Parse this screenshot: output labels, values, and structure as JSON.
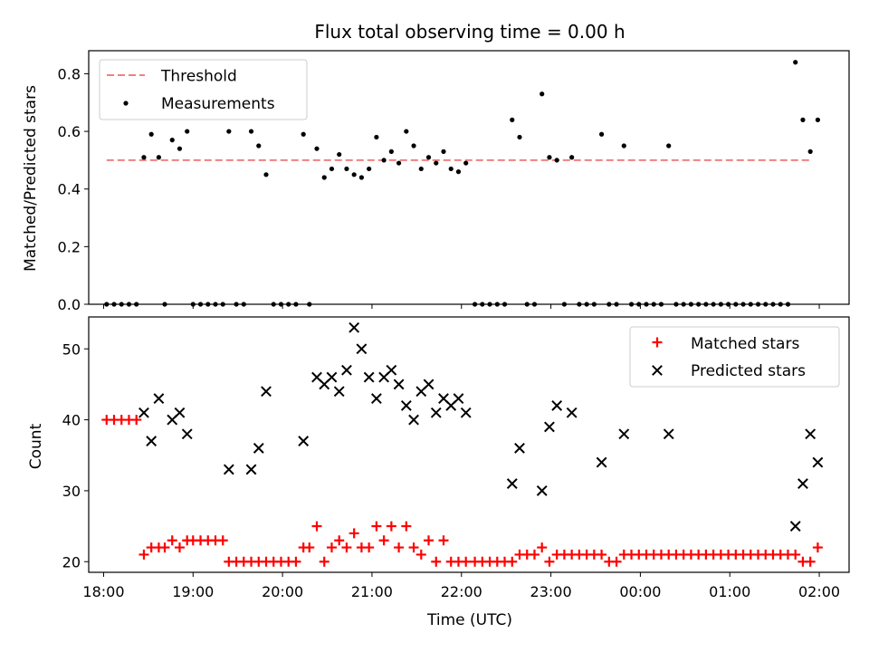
{
  "chart_data": [
    {
      "type": "scatter",
      "title": "Flux total observing time = 0.00 h",
      "xlabel": "",
      "ylabel": "Matched/Predicted stars",
      "xlim": [
        "17:50",
        "02:20"
      ],
      "ylim": [
        0,
        0.88
      ],
      "yticks": [
        "0.0",
        "0.2",
        "0.4",
        "0.6",
        "0.8"
      ],
      "grid": false,
      "legend_position": "top-left",
      "threshold": {
        "name": "Threshold",
        "value": 0.5,
        "x_start": "18:02",
        "x_end": "01:55",
        "color": "#f08080",
        "style": "dashed"
      },
      "series": [
        {
          "name": "Measurements",
          "color": "#000000",
          "marker": "dot",
          "points": [
            [
              "18:02",
              0
            ],
            [
              "18:07",
              0
            ],
            [
              "18:12",
              0
            ],
            [
              "18:17",
              0
            ],
            [
              "18:22",
              0
            ],
            [
              "18:27",
              0.51
            ],
            [
              "18:32",
              0.59
            ],
            [
              "18:37",
              0.51
            ],
            [
              "18:41",
              0
            ],
            [
              "18:46",
              0.57
            ],
            [
              "18:51",
              0.54
            ],
            [
              "18:56",
              0.6
            ],
            [
              "19:00",
              0
            ],
            [
              "19:05",
              0
            ],
            [
              "19:10",
              0
            ],
            [
              "19:15",
              0
            ],
            [
              "19:20",
              0
            ],
            [
              "19:24",
              0.6
            ],
            [
              "19:29",
              0
            ],
            [
              "19:34",
              0
            ],
            [
              "19:39",
              0.6
            ],
            [
              "19:44",
              0.55
            ],
            [
              "19:49",
              0.45
            ],
            [
              "19:54",
              0
            ],
            [
              "19:59",
              0
            ],
            [
              "20:04",
              0
            ],
            [
              "20:09",
              0
            ],
            [
              "20:14",
              0.59
            ],
            [
              "20:18",
              0
            ],
            [
              "20:23",
              0.54
            ],
            [
              "20:28",
              0.44
            ],
            [
              "20:33",
              0.47
            ],
            [
              "20:38",
              0.52
            ],
            [
              "20:43",
              0.47
            ],
            [
              "20:48",
              0.45
            ],
            [
              "20:53",
              0.44
            ],
            [
              "20:58",
              0.47
            ],
            [
              "21:03",
              0.58
            ],
            [
              "21:08",
              0.5
            ],
            [
              "21:13",
              0.53
            ],
            [
              "21:18",
              0.49
            ],
            [
              "21:23",
              0.6
            ],
            [
              "21:28",
              0.55
            ],
            [
              "21:33",
              0.47
            ],
            [
              "21:38",
              0.51
            ],
            [
              "21:43",
              0.49
            ],
            [
              "21:48",
              0.53
            ],
            [
              "21:53",
              0.47
            ],
            [
              "21:58",
              0.46
            ],
            [
              "22:03",
              0.49
            ],
            [
              "22:09",
              0
            ],
            [
              "22:14",
              0
            ],
            [
              "22:19",
              0
            ],
            [
              "22:24",
              0
            ],
            [
              "22:29",
              0
            ],
            [
              "22:34",
              0.64
            ],
            [
              "22:39",
              0.58
            ],
            [
              "22:44",
              0
            ],
            [
              "22:49",
              0
            ],
            [
              "22:54",
              0.73
            ],
            [
              "22:59",
              0.51
            ],
            [
              "23:04",
              0.5
            ],
            [
              "23:09",
              0
            ],
            [
              "23:14",
              0.51
            ],
            [
              "23:19",
              0
            ],
            [
              "23:24",
              0
            ],
            [
              "23:29",
              0
            ],
            [
              "23:34",
              0.59
            ],
            [
              "23:39",
              0
            ],
            [
              "23:44",
              0
            ],
            [
              "23:49",
              0.55
            ],
            [
              "23:54",
              0
            ],
            [
              "23:59",
              0
            ],
            [
              "00:04",
              0
            ],
            [
              "00:09",
              0
            ],
            [
              "00:14",
              0
            ],
            [
              "00:19",
              0.55
            ],
            [
              "00:24",
              0
            ],
            [
              "00:29",
              0
            ],
            [
              "00:34",
              0
            ],
            [
              "00:39",
              0
            ],
            [
              "00:44",
              0
            ],
            [
              "00:49",
              0
            ],
            [
              "00:54",
              0
            ],
            [
              "00:59",
              0
            ],
            [
              "01:04",
              0
            ],
            [
              "01:09",
              0
            ],
            [
              "01:14",
              0
            ],
            [
              "01:19",
              0
            ],
            [
              "01:24",
              0
            ],
            [
              "01:29",
              0
            ],
            [
              "01:34",
              0
            ],
            [
              "01:39",
              0
            ],
            [
              "01:44",
              0.84
            ],
            [
              "01:49",
              0.64
            ],
            [
              "01:54",
              0.53
            ],
            [
              "01:59",
              0.64
            ]
          ]
        }
      ]
    },
    {
      "type": "scatter",
      "title": "",
      "xlabel": "Time (UTC)",
      "ylabel": "Count",
      "xlim": [
        "17:50",
        "02:20"
      ],
      "ylim": [
        18.5,
        54.5
      ],
      "yticks": [
        "20",
        "30",
        "40",
        "50"
      ],
      "xticks": [
        "18:00",
        "19:00",
        "20:00",
        "21:00",
        "22:00",
        "23:00",
        "00:00",
        "01:00",
        "02:00"
      ],
      "grid": false,
      "legend_position": "top-right",
      "series": [
        {
          "name": "Matched stars",
          "color": "#ff0000",
          "marker": "plus",
          "points": [
            [
              "18:02",
              40
            ],
            [
              "18:07",
              40
            ],
            [
              "18:12",
              40
            ],
            [
              "18:17",
              40
            ],
            [
              "18:22",
              40
            ],
            [
              "18:27",
              21
            ],
            [
              "18:32",
              22
            ],
            [
              "18:37",
              22
            ],
            [
              "18:41",
              22
            ],
            [
              "18:46",
              23
            ],
            [
              "18:51",
              22
            ],
            [
              "18:56",
              23
            ],
            [
              "19:00",
              23
            ],
            [
              "19:05",
              23
            ],
            [
              "19:10",
              23
            ],
            [
              "19:15",
              23
            ],
            [
              "19:20",
              23
            ],
            [
              "19:24",
              20
            ],
            [
              "19:29",
              20
            ],
            [
              "19:34",
              20
            ],
            [
              "19:39",
              20
            ],
            [
              "19:44",
              20
            ],
            [
              "19:49",
              20
            ],
            [
              "19:54",
              20
            ],
            [
              "19:59",
              20
            ],
            [
              "20:04",
              20
            ],
            [
              "20:09",
              20
            ],
            [
              "20:14",
              22
            ],
            [
              "20:18",
              22
            ],
            [
              "20:23",
              25
            ],
            [
              "20:28",
              20
            ],
            [
              "20:33",
              22
            ],
            [
              "20:38",
              23
            ],
            [
              "20:43",
              22
            ],
            [
              "20:48",
              24
            ],
            [
              "20:53",
              22
            ],
            [
              "20:58",
              22
            ],
            [
              "21:03",
              25
            ],
            [
              "21:08",
              23
            ],
            [
              "21:13",
              25
            ],
            [
              "21:18",
              22
            ],
            [
              "21:23",
              25
            ],
            [
              "21:28",
              22
            ],
            [
              "21:33",
              21
            ],
            [
              "21:38",
              23
            ],
            [
              "21:43",
              20
            ],
            [
              "21:48",
              23
            ],
            [
              "21:53",
              20
            ],
            [
              "21:58",
              20
            ],
            [
              "22:03",
              20
            ],
            [
              "22:09",
              20
            ],
            [
              "22:14",
              20
            ],
            [
              "22:19",
              20
            ],
            [
              "22:24",
              20
            ],
            [
              "22:29",
              20
            ],
            [
              "22:34",
              20
            ],
            [
              "22:39",
              21
            ],
            [
              "22:44",
              21
            ],
            [
              "22:49",
              21
            ],
            [
              "22:54",
              22
            ],
            [
              "22:59",
              20
            ],
            [
              "23:04",
              21
            ],
            [
              "23:09",
              21
            ],
            [
              "23:14",
              21
            ],
            [
              "23:19",
              21
            ],
            [
              "23:24",
              21
            ],
            [
              "23:29",
              21
            ],
            [
              "23:34",
              21
            ],
            [
              "23:39",
              20
            ],
            [
              "23:44",
              20
            ],
            [
              "23:49",
              21
            ],
            [
              "23:54",
              21
            ],
            [
              "23:59",
              21
            ],
            [
              "00:04",
              21
            ],
            [
              "00:09",
              21
            ],
            [
              "00:14",
              21
            ],
            [
              "00:19",
              21
            ],
            [
              "00:24",
              21
            ],
            [
              "00:29",
              21
            ],
            [
              "00:34",
              21
            ],
            [
              "00:39",
              21
            ],
            [
              "00:44",
              21
            ],
            [
              "00:49",
              21
            ],
            [
              "00:54",
              21
            ],
            [
              "00:59",
              21
            ],
            [
              "01:04",
              21
            ],
            [
              "01:09",
              21
            ],
            [
              "01:14",
              21
            ],
            [
              "01:19",
              21
            ],
            [
              "01:24",
              21
            ],
            [
              "01:29",
              21
            ],
            [
              "01:34",
              21
            ],
            [
              "01:39",
              21
            ],
            [
              "01:44",
              21
            ],
            [
              "01:49",
              20
            ],
            [
              "01:54",
              20
            ],
            [
              "01:59",
              22
            ]
          ]
        },
        {
          "name": "Predicted stars",
          "color": "#000000",
          "marker": "cross",
          "points": [
            [
              "18:27",
              41
            ],
            [
              "18:32",
              37
            ],
            [
              "18:37",
              43
            ],
            [
              "18:46",
              40
            ],
            [
              "18:51",
              41
            ],
            [
              "18:56",
              38
            ],
            [
              "19:24",
              33
            ],
            [
              "19:39",
              33
            ],
            [
              "19:44",
              36
            ],
            [
              "19:49",
              44
            ],
            [
              "20:14",
              37
            ],
            [
              "20:23",
              46
            ],
            [
              "20:28",
              45
            ],
            [
              "20:33",
              46
            ],
            [
              "20:38",
              44
            ],
            [
              "20:43",
              47
            ],
            [
              "20:48",
              53
            ],
            [
              "20:53",
              50
            ],
            [
              "20:58",
              46
            ],
            [
              "21:03",
              43
            ],
            [
              "21:08",
              46
            ],
            [
              "21:13",
              47
            ],
            [
              "21:18",
              45
            ],
            [
              "21:23",
              42
            ],
            [
              "21:28",
              40
            ],
            [
              "21:33",
              44
            ],
            [
              "21:38",
              45
            ],
            [
              "21:43",
              41
            ],
            [
              "21:48",
              43
            ],
            [
              "21:53",
              42
            ],
            [
              "21:58",
              43
            ],
            [
              "22:03",
              41
            ],
            [
              "22:34",
              31
            ],
            [
              "22:39",
              36
            ],
            [
              "22:54",
              30
            ],
            [
              "22:59",
              39
            ],
            [
              "23:04",
              42
            ],
            [
              "23:14",
              41
            ],
            [
              "23:34",
              34
            ],
            [
              "23:49",
              38
            ],
            [
              "00:19",
              38
            ],
            [
              "01:44",
              25
            ],
            [
              "01:49",
              31
            ],
            [
              "01:54",
              38
            ],
            [
              "01:59",
              34
            ]
          ]
        }
      ]
    }
  ]
}
